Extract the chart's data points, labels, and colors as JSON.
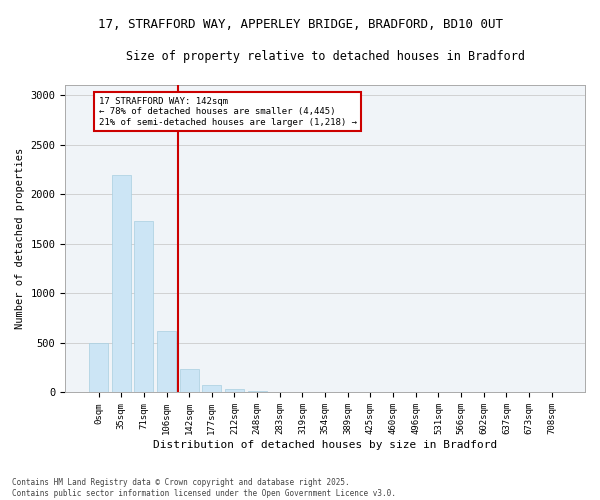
{
  "title_line1": "17, STRAFFORD WAY, APPERLEY BRIDGE, BRADFORD, BD10 0UT",
  "title_line2": "Size of property relative to detached houses in Bradford",
  "xlabel": "Distribution of detached houses by size in Bradford",
  "ylabel": "Number of detached properties",
  "annotation_line1": "17 STRAFFORD WAY: 142sqm",
  "annotation_line2": "← 78% of detached houses are smaller (4,445)",
  "annotation_line3": "21% of semi-detached houses are larger (1,218) →",
  "categories": [
    "0sqm",
    "35sqm",
    "71sqm",
    "106sqm",
    "142sqm",
    "177sqm",
    "212sqm",
    "248sqm",
    "283sqm",
    "319sqm",
    "354sqm",
    "389sqm",
    "425sqm",
    "460sqm",
    "496sqm",
    "531sqm",
    "566sqm",
    "602sqm",
    "637sqm",
    "673sqm",
    "708sqm"
  ],
  "values": [
    500,
    2190,
    1730,
    620,
    240,
    80,
    30,
    15,
    8,
    5,
    3,
    2,
    1,
    1,
    0,
    0,
    0,
    0,
    0,
    0,
    0
  ],
  "bar_color": "#cce5f5",
  "bar_edge_color": "#a8cfe0",
  "vline_x_index": 4,
  "vline_color": "#cc0000",
  "ylim": [
    0,
    3100
  ],
  "yticks": [
    0,
    500,
    1000,
    1500,
    2000,
    2500,
    3000
  ],
  "background_color": "#f0f4f8",
  "grid_color": "#cccccc",
  "annotation_box_color": "#cc0000",
  "footer_line1": "Contains HM Land Registry data © Crown copyright and database right 2025.",
  "footer_line2": "Contains public sector information licensed under the Open Government Licence v3.0."
}
